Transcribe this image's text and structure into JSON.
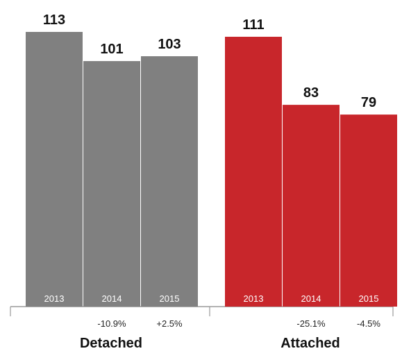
{
  "chart_data": {
    "type": "bar",
    "groups": [
      {
        "name": "Detached",
        "color": "#808080",
        "categories": [
          "2013",
          "2014",
          "2015"
        ],
        "values": [
          113,
          101,
          103
        ],
        "changes": [
          "",
          "-10.9%",
          "+2.5%"
        ]
      },
      {
        "name": "Attached",
        "color": "#c8262b",
        "categories": [
          "2013",
          "2014",
          "2015"
        ],
        "values": [
          111,
          83,
          79
        ],
        "changes": [
          "",
          "-25.1%",
          "-4.5%"
        ]
      }
    ],
    "ylim": [
      0,
      113
    ],
    "grid": false,
    "legend": "none"
  }
}
